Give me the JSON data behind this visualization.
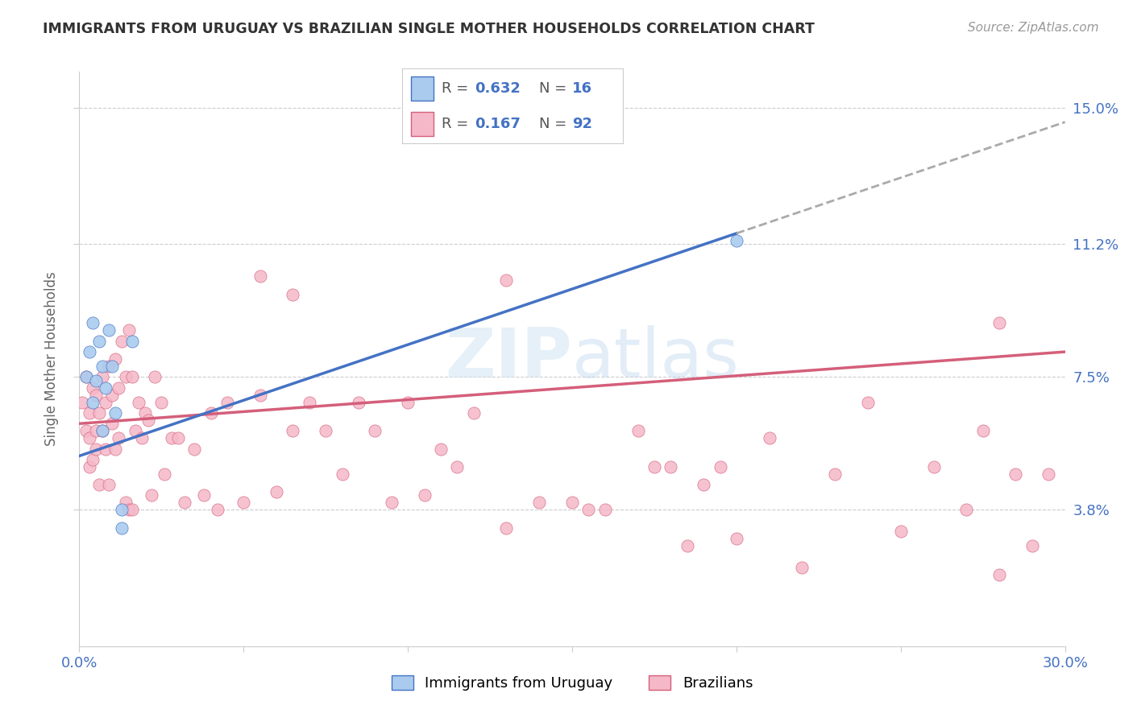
{
  "title": "IMMIGRANTS FROM URUGUAY VS BRAZILIAN SINGLE MOTHER HOUSEHOLDS CORRELATION CHART",
  "source": "Source: ZipAtlas.com",
  "ylabel": "Single Mother Households",
  "xmin": 0.0,
  "xmax": 0.3,
  "ymin": 0.0,
  "ymax": 0.16,
  "yticks": [
    0.038,
    0.075,
    0.112,
    0.15
  ],
  "ytick_labels": [
    "3.8%",
    "7.5%",
    "11.2%",
    "15.0%"
  ],
  "watermark": "ZIPatlas",
  "color_uruguay": "#aacbee",
  "color_brazil": "#f5b8c8",
  "color_line_uruguay": "#4472c4",
  "color_line_brazil": "#d45f7a",
  "color_axis_labels": "#4472c4",
  "color_rn_values": "#4472c4",
  "uru_line_x0": 0.0,
  "uru_line_y0": 0.053,
  "uru_line_x1": 0.2,
  "uru_line_y1": 0.115,
  "bra_line_x0": 0.0,
  "bra_line_y0": 0.062,
  "bra_line_x1": 0.3,
  "bra_line_y1": 0.082,
  "uruguay_x": [
    0.002,
    0.003,
    0.004,
    0.004,
    0.005,
    0.006,
    0.007,
    0.007,
    0.008,
    0.009,
    0.01,
    0.011,
    0.013,
    0.013,
    0.016,
    0.2
  ],
  "uruguay_y": [
    0.075,
    0.082,
    0.068,
    0.09,
    0.074,
    0.085,
    0.06,
    0.078,
    0.072,
    0.088,
    0.078,
    0.065,
    0.038,
    0.033,
    0.085,
    0.113
  ],
  "brazil_x": [
    0.001,
    0.002,
    0.002,
    0.003,
    0.003,
    0.003,
    0.004,
    0.004,
    0.005,
    0.005,
    0.005,
    0.006,
    0.006,
    0.007,
    0.007,
    0.008,
    0.008,
    0.009,
    0.009,
    0.01,
    0.01,
    0.011,
    0.011,
    0.012,
    0.012,
    0.013,
    0.014,
    0.014,
    0.015,
    0.015,
    0.016,
    0.016,
    0.017,
    0.018,
    0.019,
    0.02,
    0.021,
    0.022,
    0.023,
    0.025,
    0.026,
    0.028,
    0.03,
    0.032,
    0.035,
    0.038,
    0.04,
    0.042,
    0.045,
    0.05,
    0.055,
    0.06,
    0.065,
    0.07,
    0.075,
    0.08,
    0.085,
    0.09,
    0.095,
    0.1,
    0.105,
    0.11,
    0.115,
    0.12,
    0.13,
    0.14,
    0.15,
    0.155,
    0.16,
    0.17,
    0.175,
    0.18,
    0.185,
    0.19,
    0.195,
    0.2,
    0.21,
    0.22,
    0.23,
    0.24,
    0.25,
    0.26,
    0.27,
    0.275,
    0.28,
    0.285,
    0.29,
    0.295,
    0.055,
    0.13,
    0.065,
    0.28
  ],
  "brazil_y": [
    0.068,
    0.06,
    0.075,
    0.065,
    0.058,
    0.05,
    0.072,
    0.052,
    0.06,
    0.055,
    0.07,
    0.065,
    0.045,
    0.075,
    0.06,
    0.068,
    0.055,
    0.078,
    0.045,
    0.07,
    0.062,
    0.08,
    0.055,
    0.072,
    0.058,
    0.085,
    0.075,
    0.04,
    0.088,
    0.038,
    0.075,
    0.038,
    0.06,
    0.068,
    0.058,
    0.065,
    0.063,
    0.042,
    0.075,
    0.068,
    0.048,
    0.058,
    0.058,
    0.04,
    0.055,
    0.042,
    0.065,
    0.038,
    0.068,
    0.04,
    0.07,
    0.043,
    0.06,
    0.068,
    0.06,
    0.048,
    0.068,
    0.06,
    0.04,
    0.068,
    0.042,
    0.055,
    0.05,
    0.065,
    0.033,
    0.04,
    0.04,
    0.038,
    0.038,
    0.06,
    0.05,
    0.05,
    0.028,
    0.045,
    0.05,
    0.03,
    0.058,
    0.022,
    0.048,
    0.068,
    0.032,
    0.05,
    0.038,
    0.06,
    0.02,
    0.048,
    0.028,
    0.048,
    0.103,
    0.102,
    0.098,
    0.09
  ]
}
